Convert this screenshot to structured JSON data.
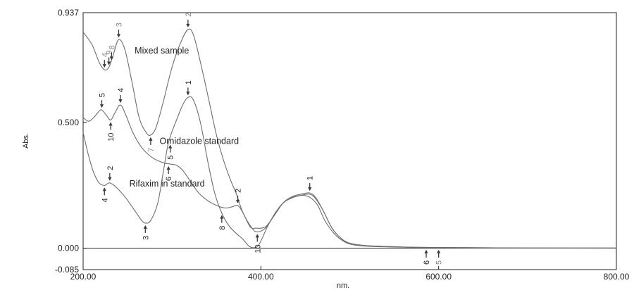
{
  "chart_data": {
    "type": "line",
    "xlabel": "nm.",
    "ylabel": "Abs.",
    "xlim": [
      200.0,
      800.0
    ],
    "ylim": [
      -0.085,
      0.937
    ],
    "x_ticks": [
      "200.00",
      "400.00",
      "600.00",
      "800.00"
    ],
    "y_ticks": [
      "-0.085",
      "0.000",
      "0.500",
      "0.937"
    ],
    "grid": false,
    "colors": {
      "curves": "#6e6e6e",
      "axis": "#222222",
      "markers": "#3a3a3a"
    },
    "series": [
      {
        "points": [
          [
            200,
            0.86
          ],
          [
            210,
            0.81
          ],
          [
            218,
            0.74
          ],
          [
            224,
            0.71
          ],
          [
            229,
            0.72
          ],
          [
            234,
            0.77
          ],
          [
            240,
            0.83
          ],
          [
            247,
            0.79
          ],
          [
            255,
            0.66
          ],
          [
            263,
            0.52
          ],
          [
            271,
            0.46
          ],
          [
            276,
            0.45
          ],
          [
            282,
            0.48
          ],
          [
            290,
            0.58
          ],
          [
            300,
            0.72
          ],
          [
            310,
            0.82
          ],
          [
            318,
            0.87
          ],
          [
            324,
            0.85
          ],
          [
            332,
            0.74
          ],
          [
            342,
            0.58
          ],
          [
            350,
            0.45
          ],
          [
            358,
            0.35
          ],
          [
            366,
            0.27
          ],
          [
            372,
            0.22
          ],
          [
            380,
            0.14
          ],
          [
            390,
            0.08
          ],
          [
            396,
            0.065
          ],
          [
            405,
            0.08
          ],
          [
            415,
            0.13
          ],
          [
            425,
            0.18
          ],
          [
            435,
            0.205
          ],
          [
            445,
            0.215
          ],
          [
            455,
            0.22
          ],
          [
            462,
            0.2
          ],
          [
            470,
            0.15
          ],
          [
            480,
            0.08
          ],
          [
            490,
            0.04
          ],
          [
            500,
            0.02
          ],
          [
            520,
            0.01
          ],
          [
            560,
            0.005
          ],
          [
            600,
            0.003
          ],
          [
            650,
            0.002
          ],
          [
            700,
            0.001
          ],
          [
            800,
            0.001
          ]
        ]
      },
      {
        "points": [
          [
            200,
            0.52
          ],
          [
            206,
            0.505
          ],
          [
            212,
            0.52
          ],
          [
            218,
            0.545
          ],
          [
            221,
            0.55
          ],
          [
            226,
            0.53
          ],
          [
            231,
            0.51
          ],
          [
            236,
            0.54
          ],
          [
            242,
            0.57
          ],
          [
            248,
            0.53
          ],
          [
            256,
            0.46
          ],
          [
            266,
            0.4
          ],
          [
            278,
            0.36
          ],
          [
            290,
            0.34
          ],
          [
            298,
            0.335
          ],
          [
            305,
            0.33
          ],
          [
            312,
            0.31
          ],
          [
            320,
            0.27
          ],
          [
            330,
            0.22
          ],
          [
            340,
            0.19
          ],
          [
            350,
            0.17
          ],
          [
            360,
            0.16
          ],
          [
            368,
            0.165
          ],
          [
            374,
            0.17
          ],
          [
            380,
            0.14
          ],
          [
            388,
            0.085
          ],
          [
            394,
            0.08
          ],
          [
            405,
            0.085
          ],
          [
            415,
            0.13
          ],
          [
            425,
            0.18
          ],
          [
            435,
            0.2
          ],
          [
            445,
            0.21
          ],
          [
            455,
            0.215
          ],
          [
            462,
            0.195
          ],
          [
            470,
            0.15
          ],
          [
            480,
            0.08
          ],
          [
            490,
            0.04
          ],
          [
            500,
            0.02
          ],
          [
            520,
            0.01
          ],
          [
            560,
            0.005
          ],
          [
            600,
            0.003
          ],
          [
            650,
            0.002
          ],
          [
            700,
            0.001
          ],
          [
            800,
            0.001
          ]
        ]
      },
      {
        "points": [
          [
            200,
            0.46
          ],
          [
            206,
            0.37
          ],
          [
            212,
            0.3
          ],
          [
            218,
            0.26
          ],
          [
            224,
            0.25
          ],
          [
            230,
            0.26
          ],
          [
            238,
            0.24
          ],
          [
            248,
            0.2
          ],
          [
            258,
            0.15
          ],
          [
            266,
            0.11
          ],
          [
            270,
            0.1
          ],
          [
            276,
            0.11
          ],
          [
            284,
            0.18
          ],
          [
            290,
            0.3
          ],
          [
            296,
            0.42
          ],
          [
            304,
            0.5
          ],
          [
            312,
            0.57
          ],
          [
            318,
            0.6
          ],
          [
            324,
            0.59
          ],
          [
            332,
            0.5
          ],
          [
            340,
            0.35
          ],
          [
            348,
            0.22
          ],
          [
            356,
            0.14
          ],
          [
            364,
            0.09
          ],
          [
            372,
            0.06
          ],
          [
            380,
            0.035
          ],
          [
            386,
            0.01
          ],
          [
            392,
            0.002
          ],
          [
            398,
            0.015
          ],
          [
            408,
            0.09
          ],
          [
            418,
            0.15
          ],
          [
            428,
            0.19
          ],
          [
            438,
            0.205
          ],
          [
            448,
            0.21
          ],
          [
            456,
            0.2
          ],
          [
            464,
            0.17
          ],
          [
            472,
            0.11
          ],
          [
            482,
            0.06
          ],
          [
            492,
            0.03
          ],
          [
            502,
            0.015
          ],
          [
            520,
            0.008
          ],
          [
            560,
            0.004
          ],
          [
            600,
            0.002
          ],
          [
            650,
            0.001
          ],
          [
            700,
            0.001
          ],
          [
            800,
            0.0
          ]
        ]
      }
    ],
    "annotations": [
      {
        "text": "Mixed sample",
        "x": 258,
        "y": 0.775
      },
      {
        "text": "Ornidazole standard",
        "x": 286,
        "y": 0.415
      },
      {
        "text": "Rifaxim in standard",
        "x": 252,
        "y": 0.245
      }
    ],
    "peak_markers": [
      {
        "label": "2",
        "x": 318,
        "y": 0.87,
        "pos": "above",
        "light": true
      },
      {
        "label": "3",
        "x": 240,
        "y": 0.83,
        "pos": "above",
        "light": true
      },
      {
        "label": "4",
        "x": 224,
        "y": 0.71,
        "pos": "above",
        "light": true
      },
      {
        "label": "9",
        "x": 229,
        "y": 0.72,
        "pos": "above",
        "light": true
      },
      {
        "label": "8",
        "x": 232,
        "y": 0.74,
        "pos": "above",
        "light": true
      },
      {
        "label": "7",
        "x": 276,
        "y": 0.45,
        "pos": "below",
        "light": true
      },
      {
        "label": "1",
        "x": 318,
        "y": 0.6,
        "pos": "above",
        "light": false
      },
      {
        "label": "4",
        "x": 242,
        "y": 0.57,
        "pos": "above",
        "light": false
      },
      {
        "label": "5",
        "x": 221,
        "y": 0.55,
        "pos": "above",
        "light": false
      },
      {
        "label": "10",
        "x": 231,
        "y": 0.51,
        "pos": "below",
        "light": false
      },
      {
        "label": "6",
        "x": 296,
        "y": 0.335,
        "pos": "below",
        "light": false
      },
      {
        "label": "5",
        "x": 298,
        "y": 0.42,
        "pos": "below",
        "light": false
      },
      {
        "label": "2",
        "x": 230,
        "y": 0.26,
        "pos": "above",
        "light": false
      },
      {
        "label": "4",
        "x": 224,
        "y": 0.25,
        "pos": "below",
        "light": false
      },
      {
        "label": "3",
        "x": 270,
        "y": 0.1,
        "pos": "below",
        "light": false
      },
      {
        "label": "8",
        "x": 356,
        "y": 0.14,
        "pos": "below",
        "light": false
      },
      {
        "label": "2",
        "x": 374,
        "y": 0.17,
        "pos": "above",
        "light": false
      },
      {
        "label": "1",
        "x": 455,
        "y": 0.22,
        "pos": "above",
        "light": false
      },
      {
        "label": "10",
        "x": 396,
        "y": 0.065,
        "pos": "below",
        "light": false
      },
      {
        "label": "6",
        "x": 586,
        "y": 0.002,
        "pos": "below",
        "light": false
      },
      {
        "label": "5",
        "x": 600,
        "y": 0.002,
        "pos": "below",
        "light": true
      }
    ]
  }
}
